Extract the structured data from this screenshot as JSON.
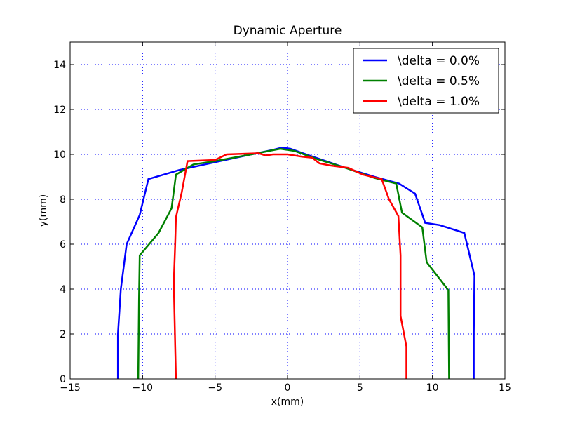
{
  "chart_data": {
    "type": "line",
    "title": "Dynamic Aperture",
    "xlabel": "x(mm)",
    "ylabel": "y(mm)",
    "xlim": [
      -15,
      15
    ],
    "ylim": [
      0,
      15
    ],
    "xticks": [
      -15,
      -10,
      -5,
      0,
      5,
      10,
      15
    ],
    "yticks": [
      0,
      2,
      4,
      6,
      8,
      10,
      12,
      14
    ],
    "grid": true,
    "legend_position": "top-right",
    "series": [
      {
        "name": "\\delta = 0.0%",
        "color": "#0000ff",
        "points": [
          [
            -11.7,
            0
          ],
          [
            -11.7,
            2.0
          ],
          [
            -11.5,
            4.0
          ],
          [
            -11.1,
            6.0
          ],
          [
            -10.2,
            7.3
          ],
          [
            -9.6,
            8.9
          ],
          [
            -7.5,
            9.3
          ],
          [
            -5.0,
            9.65
          ],
          [
            -2.5,
            10.0
          ],
          [
            -1.0,
            10.2
          ],
          [
            -0.4,
            10.3
          ],
          [
            0.2,
            10.25
          ],
          [
            1.5,
            9.95
          ],
          [
            4.0,
            9.4
          ],
          [
            6.0,
            9.0
          ],
          [
            7.7,
            8.7
          ],
          [
            8.8,
            8.25
          ],
          [
            9.5,
            6.95
          ],
          [
            10.5,
            6.85
          ],
          [
            12.2,
            6.5
          ],
          [
            12.9,
            4.6
          ],
          [
            12.85,
            2.0
          ],
          [
            12.85,
            0
          ]
        ]
      },
      {
        "name": "\\delta = 0.5%",
        "color": "#008000",
        "points": [
          [
            -10.3,
            0
          ],
          [
            -10.25,
            3.5
          ],
          [
            -10.2,
            5.5
          ],
          [
            -8.9,
            6.5
          ],
          [
            -8.0,
            7.6
          ],
          [
            -7.7,
            9.1
          ],
          [
            -6.5,
            9.55
          ],
          [
            -5.0,
            9.7
          ],
          [
            -2.5,
            10.0
          ],
          [
            -0.5,
            10.25
          ],
          [
            0.5,
            10.15
          ],
          [
            2.0,
            9.8
          ],
          [
            4.0,
            9.4
          ],
          [
            6.0,
            8.95
          ],
          [
            7.5,
            8.7
          ],
          [
            7.9,
            7.4
          ],
          [
            9.3,
            6.75
          ],
          [
            9.6,
            5.2
          ],
          [
            11.1,
            3.95
          ],
          [
            11.15,
            0
          ]
        ]
      },
      {
        "name": "\\delta = 1.0%",
        "color": "#ff0000",
        "points": [
          [
            -7.7,
            0
          ],
          [
            -7.75,
            1.5
          ],
          [
            -7.85,
            4.3
          ],
          [
            -7.75,
            6.0
          ],
          [
            -7.7,
            7.2
          ],
          [
            -7.3,
            8.3
          ],
          [
            -6.9,
            9.7
          ],
          [
            -5.0,
            9.75
          ],
          [
            -4.2,
            10.0
          ],
          [
            -2.0,
            10.05
          ],
          [
            -1.5,
            9.95
          ],
          [
            -1.0,
            10.0
          ],
          [
            0.0,
            10.0
          ],
          [
            1.0,
            9.9
          ],
          [
            1.7,
            9.85
          ],
          [
            2.2,
            9.6
          ],
          [
            3.0,
            9.5
          ],
          [
            4.2,
            9.4
          ],
          [
            5.2,
            9.1
          ],
          [
            6.5,
            8.9
          ],
          [
            7.0,
            8.0
          ],
          [
            7.65,
            7.25
          ],
          [
            7.8,
            5.5
          ],
          [
            7.8,
            2.8
          ],
          [
            8.2,
            1.45
          ],
          [
            8.2,
            0
          ]
        ]
      }
    ]
  }
}
